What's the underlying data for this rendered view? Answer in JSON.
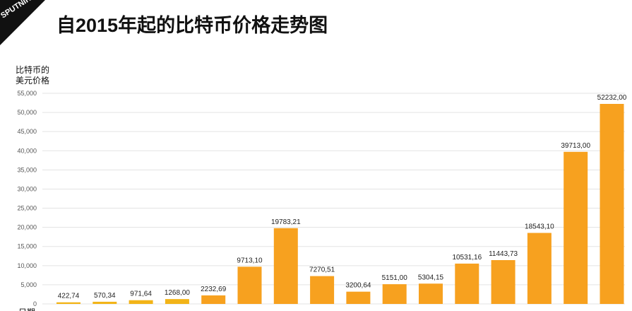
{
  "brand": "SPUTNIK",
  "title": "自2015年起的比特币价格走势图",
  "colors": {
    "bar": "#f7a11f",
    "bar_small": "#f2b418",
    "grid": "#e3e3e3"
  },
  "chart_data": {
    "type": "bar",
    "title": "自2015年起的比特币价格走势图",
    "ylabel_lines": [
      "比特币的",
      "美元价格"
    ],
    "xlabel": "日期",
    "ylim": [
      0,
      55000
    ],
    "yticks": [
      0,
      5000,
      10000,
      15000,
      20000,
      25000,
      30000,
      35000,
      40000,
      45000,
      50000,
      55000
    ],
    "ytick_labels": [
      "0",
      "5,000",
      "10,000",
      "15,000",
      "20,000",
      "25,000",
      "30,000",
      "35,000",
      "40,000",
      "45,000",
      "50,000",
      "55,000"
    ],
    "categories": [
      "",
      "",
      "",
      "",
      "",
      "",
      "",
      "",
      "",
      "",
      "",
      "",
      "",
      "",
      "",
      ""
    ],
    "values": [
      422.74,
      570.34,
      971.64,
      1268.0,
      2232.69,
      9713.1,
      19783.21,
      7270.51,
      3200.64,
      5151.0,
      5304.15,
      10531.16,
      11443.73,
      18543.1,
      39713.0,
      52232.0
    ],
    "data_labels": [
      "422,74",
      "570,34",
      "971,64",
      "1268,00",
      "2232,69",
      "9713,10",
      "19783,21",
      "7270,51",
      "3200,64",
      "5151,00",
      "5304,15",
      "10531,16",
      "11443,73",
      "18543,10",
      "39713,00",
      "52232,00"
    ],
    "grid": true,
    "legend": "none"
  }
}
